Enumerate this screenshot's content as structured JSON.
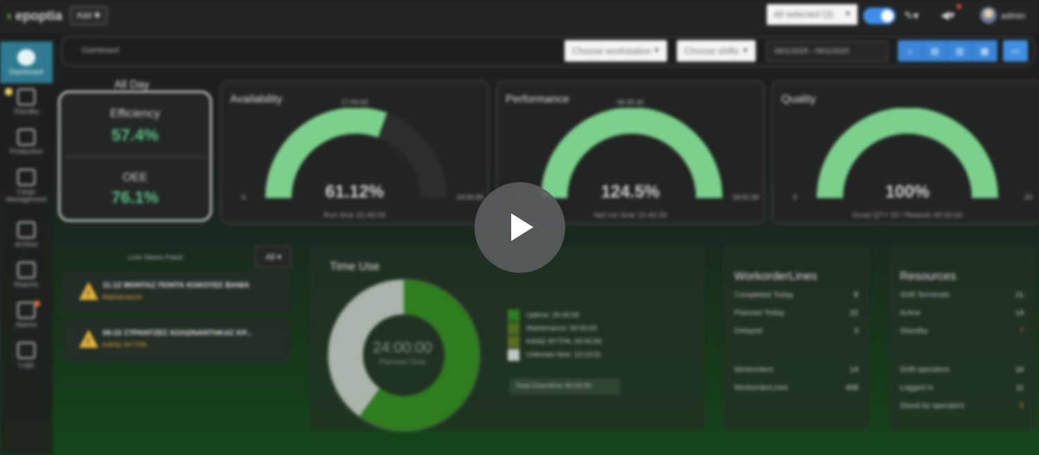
{
  "topbar": {
    "logo": "epoptia",
    "add_button": "Add ✚",
    "selection": "All selected (3)",
    "user": "admin"
  },
  "sidebar": {
    "items": [
      {
        "label": "Dashboard",
        "icon": "gauge-icon"
      },
      {
        "label": "Standby",
        "icon": "standby-icon"
      },
      {
        "label": "Production",
        "icon": "production-icon"
      },
      {
        "label": "Cargo Management",
        "icon": "cargo-icon"
      },
      {
        "label": "Archive",
        "icon": "archive-icon"
      },
      {
        "label": "Reports",
        "icon": "chart-icon"
      },
      {
        "label": "Alarms",
        "icon": "alarm-icon"
      },
      {
        "label": "Logs",
        "icon": "logs-icon"
      }
    ]
  },
  "header": {
    "breadcrumb": "Dashboard",
    "workstation_select": "Choose workstation",
    "shift_select": "Choose shifts",
    "date_range": "06/1/2025 - 06/1/2025"
  },
  "summary": {
    "period": "All Day",
    "efficiency_label": "Efficiency",
    "efficiency_value": "57.4%",
    "oee_label": "OEE",
    "oee_value": "76.1%"
  },
  "gauges": [
    {
      "title": "Availability",
      "target": "17:00:00",
      "min": "0",
      "max": "24:00:00",
      "value": "61.12%",
      "fraction": 0.6112,
      "subtitle": "Run time 20:46:56"
    },
    {
      "title": "Performance",
      "target": "08:45:30",
      "min": "0",
      "max": "18:51:00",
      "value": "124.5%",
      "fraction": 1.0,
      "subtitle": "Net run time 15:40:34"
    },
    {
      "title": "Quality",
      "target": "",
      "min": "0",
      "max": "20",
      "value": "100%",
      "fraction": 1.0,
      "subtitle": "Good QTY 20 / Rework 00:00:00"
    }
  ],
  "news": {
    "title": "Live News Feed",
    "filter": "All ▾",
    "items": [
      {
        "title": "11:12 ΜΟΝΤΑΖ ΠΟΝΤΑ ΚΟΚΟΥΕΣ ΒΑΝΙΑ",
        "status": "Maintenance"
      },
      {
        "title": "09:22 ΣΤΡΑΝΤΖΕΣ ΚΟΛΩΝΑΝΤΗΚΑΣ ΚΡ...",
        "status": "ΚΑΝΩ ΦΥΤΡΑ"
      }
    ]
  },
  "time_use": {
    "title": "Time Use",
    "center_value": "24:00:00",
    "center_label": "Planned Time",
    "legend": [
      {
        "label": "Uptime: 20:46:56",
        "color": "#2e7d1f"
      },
      {
        "label": "Maintenance: 00:00:03",
        "color": "#4f6e1c"
      },
      {
        "label": "ΚΑΝΩ ΦΥΤΡΑ: 00:00:59",
        "color": "#5d6b24"
      },
      {
        "label": "Unknown time: 13:13:01",
        "color": "#c0c7c0"
      }
    ],
    "total_downtime": "Total Downtime 00:00:00",
    "segments": [
      0.6,
      0.4
    ]
  },
  "workorder_lines": {
    "title": "WorkorderLines",
    "rows": [
      {
        "label": "Completed Today",
        "value": "8"
      },
      {
        "label": "Planned Today",
        "value": "22"
      },
      {
        "label": "Delayed",
        "value": "3"
      },
      {
        "label": "Workorders",
        "value": "14"
      },
      {
        "label": "WorkorderLines",
        "value": "408"
      }
    ]
  },
  "resources": {
    "title": "Resources",
    "rows": [
      {
        "label": "Shift Terminals",
        "value": "21"
      },
      {
        "label": "Active",
        "value": "14"
      },
      {
        "label": "Standby",
        "value": "7"
      },
      {
        "label": "Shift operators",
        "value": "16"
      },
      {
        "label": "Logged in",
        "value": "11"
      },
      {
        "label": "Stand by operators",
        "value": "5"
      }
    ]
  },
  "colors": {
    "gauge_fill": "#7bd08c",
    "gauge_track": "#2c2e2d",
    "accent_blue": "#3b86d8",
    "kpi_green": "#58c08a"
  }
}
